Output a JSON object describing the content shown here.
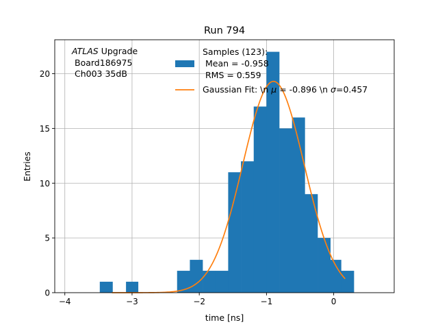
{
  "chart_data": {
    "type": "bar",
    "title": "Run 794",
    "xlabel": "time [ns]",
    "ylabel": "Entries",
    "xlim": [
      -4.15,
      0.9
    ],
    "ylim": [
      0,
      23.1
    ],
    "xticks": [
      -4,
      -3,
      -2,
      -1,
      0
    ],
    "yticks": [
      0,
      5,
      10,
      15,
      20
    ],
    "xtick_labels": [
      "−4",
      "−3",
      "−2",
      "−1",
      "0"
    ],
    "ytick_labels": [
      "0",
      "5",
      "10",
      "15",
      "20"
    ],
    "grid": true,
    "legend_position": "top-right",
    "histogram": {
      "name": "Samples (123):\n Mean = -0.958\n RMS = 0.559",
      "color": "#1f77b4",
      "bins": [
        {
          "x0": -3.48,
          "x1": -3.29,
          "value": 1
        },
        {
          "x0": -3.09,
          "x1": -2.91,
          "value": 1
        },
        {
          "x0": -2.33,
          "x1": -2.14,
          "value": 2
        },
        {
          "x0": -2.14,
          "x1": -1.95,
          "value": 3
        },
        {
          "x0": -1.95,
          "x1": -1.76,
          "value": 2
        },
        {
          "x0": -1.76,
          "x1": -1.57,
          "value": 2
        },
        {
          "x0": -1.57,
          "x1": -1.38,
          "value": 11
        },
        {
          "x0": -1.38,
          "x1": -1.19,
          "value": 12
        },
        {
          "x0": -1.19,
          "x1": -1.0,
          "value": 17
        },
        {
          "x0": -1.0,
          "x1": -0.81,
          "value": 22
        },
        {
          "x0": -0.81,
          "x1": -0.62,
          "value": 15
        },
        {
          "x0": -0.62,
          "x1": -0.43,
          "value": 16
        },
        {
          "x0": -0.43,
          "x1": -0.24,
          "value": 9
        },
        {
          "x0": -0.24,
          "x1": -0.05,
          "value": 5
        },
        {
          "x0": -0.05,
          "x1": 0.11,
          "value": 3
        },
        {
          "x0": 0.11,
          "x1": 0.3,
          "value": 2
        }
      ]
    },
    "fit": {
      "name": "Gaussian Fit: \\n $\\mu$ = -0.896 \\n $\\sigma$=0.457",
      "color": "#ff7f0e",
      "mu": -0.896,
      "sigma": 0.457,
      "amplitude": 19.3,
      "x_range": [
        -3.3,
        0.17
      ]
    },
    "annotation": {
      "italic": "ATLAS",
      "line1_rest": " Upgrade",
      "line2": "Board186975",
      "line3": "Ch003 35dB"
    },
    "legend": {
      "hist_label_lines": [
        "Samples (123):",
        " Mean = -0.958",
        " RMS = 0.559"
      ],
      "fit_label_prefix": "Gaussian Fit: \\n ",
      "fit_mu_sym": "μ",
      "fit_mid": " = -0.896 \\n ",
      "fit_sigma_sym": "σ",
      "fit_suffix": "=0.457"
    }
  }
}
